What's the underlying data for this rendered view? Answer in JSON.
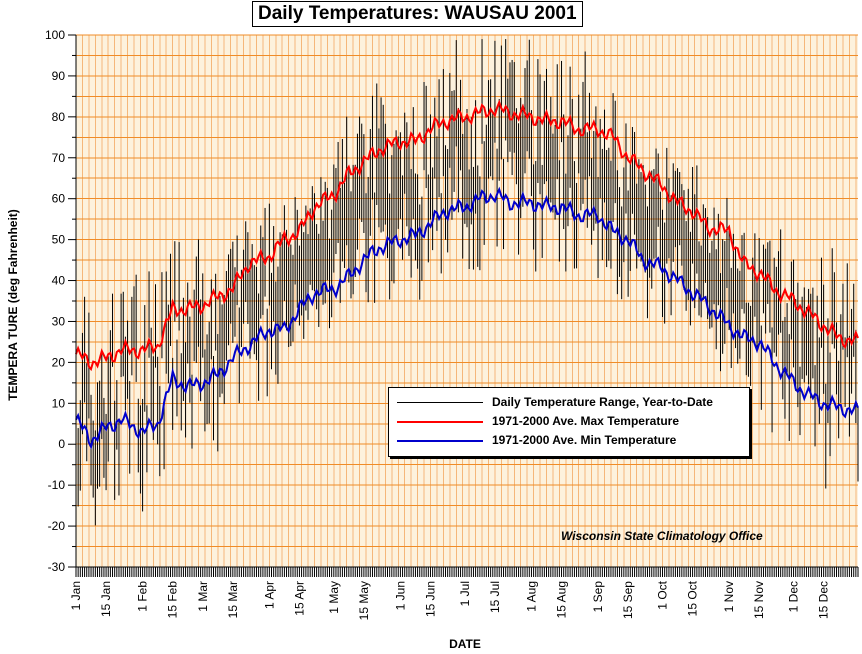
{
  "chart_data": {
    "type": "line",
    "title": "Daily Temperatures: WAUSAU 2001",
    "xlabel": "DATE",
    "ylabel": "TEMPERA TURE (deg Fahrenheit)",
    "ylim": [
      -30,
      100
    ],
    "y_ticks": [
      100,
      90,
      80,
      70,
      60,
      50,
      40,
      30,
      20,
      10,
      0,
      -10,
      -20,
      -30
    ],
    "x_tick_labels": [
      "1 Jan",
      "15 Jan",
      "1 Feb",
      "15 Feb",
      "1 Mar",
      "15 Mar",
      "1 Apr",
      "15 Apr",
      "1 May",
      "15 May",
      "1 Jun",
      "15 Jun",
      "1 Jul",
      "15 Jul",
      "1 Aug",
      "15 Aug",
      "1 Sep",
      "15 Sep",
      "1 Oct",
      "15 Oct",
      "1 Nov",
      "15 Nov",
      "1 Dec",
      "15 Dec"
    ],
    "grid": true,
    "legend_position": "lower-right",
    "annotation": "Wisconsin State Climatology Office",
    "colors": {
      "background": "#FDF2DD",
      "grid_horizontal": "#F08C28",
      "grid_vertical": "#F5B77A",
      "range": "#000000",
      "avg_max": "#FF0000",
      "avg_min": "#0000CC"
    },
    "series": [
      {
        "name": "Daily Temperature Range, Year-to-Date",
        "kind": "range",
        "note": "one vertical bar per day from the daily low to the daily high, 1 Jan - 31 Dec 2001"
      },
      {
        "name": "1971-2000 Ave. Max Temperature",
        "kind": "line",
        "x": [
          "1 Jan",
          "8 Jan",
          "15 Jan",
          "22 Jan",
          "1 Feb",
          "8 Feb",
          "15 Feb",
          "22 Feb",
          "1 Mar",
          "8 Mar",
          "15 Mar",
          "22 Mar",
          "1 Apr",
          "8 Apr",
          "15 Apr",
          "22 Apr",
          "1 May",
          "8 May",
          "15 May",
          "22 May",
          "1 Jun",
          "8 Jun",
          "15 Jun",
          "22 Jun",
          "1 Jul",
          "8 Jul",
          "15 Jul",
          "22 Jul",
          "1 Aug",
          "8 Aug",
          "15 Aug",
          "22 Aug",
          "1 Sep",
          "8 Sep",
          "15 Sep",
          "22 Sep",
          "1 Oct",
          "8 Oct",
          "15 Oct",
          "22 Oct",
          "1 Nov",
          "8 Nov",
          "15 Nov",
          "22 Nov",
          "1 Dec",
          "8 Dec",
          "15 Dec",
          "22 Dec",
          "31 Dec"
        ],
        "values": [
          22,
          20,
          21,
          23,
          23,
          24,
          33,
          33,
          34,
          36,
          38,
          44,
          46,
          50,
          52,
          58,
          61,
          66,
          69,
          72,
          74,
          74,
          77,
          79,
          80,
          81,
          82,
          81,
          80,
          79,
          79,
          77,
          77,
          75,
          70,
          67,
          63,
          59,
          57,
          53,
          52,
          44,
          42,
          38,
          35,
          32,
          29,
          26,
          25
        ]
      },
      {
        "name": "1971-2000 Ave. Min Temperature",
        "kind": "line",
        "x": [
          "1 Jan",
          "8 Jan",
          "15 Jan",
          "22 Jan",
          "1 Feb",
          "8 Feb",
          "15 Feb",
          "22 Feb",
          "1 Mar",
          "8 Mar",
          "15 Mar",
          "22 Mar",
          "1 Apr",
          "8 Apr",
          "15 Apr",
          "22 Apr",
          "1 May",
          "8 May",
          "15 May",
          "22 May",
          "1 Jun",
          "8 Jun",
          "15 Jun",
          "22 Jun",
          "1 Jul",
          "8 Jul",
          "15 Jul",
          "22 Jul",
          "1 Aug",
          "8 Aug",
          "15 Aug",
          "22 Aug",
          "1 Sep",
          "8 Sep",
          "15 Sep",
          "22 Sep",
          "1 Oct",
          "8 Oct",
          "15 Oct",
          "22 Oct",
          "1 Nov",
          "8 Nov",
          "15 Nov",
          "22 Nov",
          "1 Dec",
          "8 Dec",
          "15 Dec",
          "22 Dec",
          "31 Dec"
        ],
        "values": [
          6,
          1,
          4,
          6,
          3,
          5,
          16,
          14,
          15,
          17,
          21,
          24,
          28,
          28,
          33,
          37,
          38,
          41,
          45,
          48,
          50,
          51,
          54,
          57,
          58,
          60,
          61,
          59,
          59,
          58,
          58,
          56,
          56,
          52,
          50,
          45,
          43,
          40,
          37,
          34,
          29,
          26,
          25,
          20,
          15,
          12,
          10,
          9,
          8
        ]
      }
    ]
  },
  "credit": "Wisconsin State Climatology Office"
}
